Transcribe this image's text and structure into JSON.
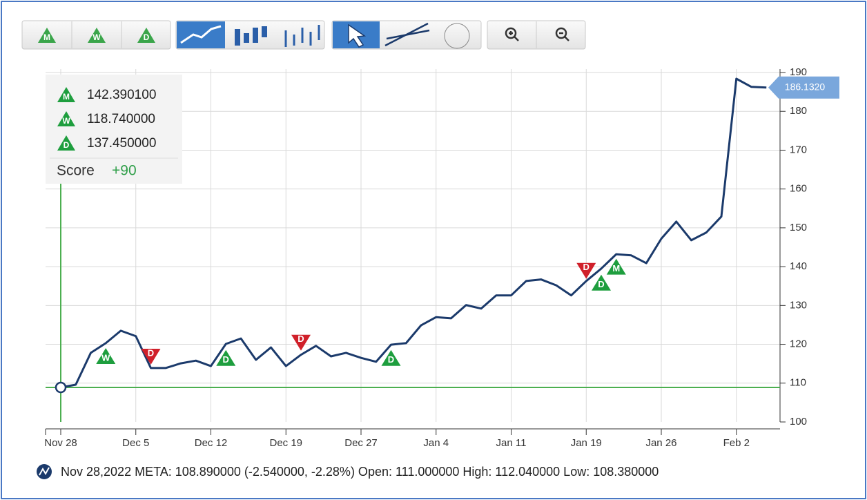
{
  "chart_data": {
    "type": "line",
    "toolbar": [
      "M",
      "W",
      "D"
    ],
    "categories": [
      "Nov 28",
      null,
      null,
      null,
      null,
      "Dec 5",
      null,
      null,
      null,
      null,
      "Dec 12",
      null,
      null,
      null,
      null,
      "Dec 19",
      null,
      null,
      null,
      null,
      "Dec 27",
      null,
      null,
      null,
      null,
      "Jan 4",
      null,
      null,
      null,
      null,
      "Jan 11",
      null,
      null,
      null,
      null,
      "Jan 19",
      null,
      null,
      null,
      null,
      "Jan 26",
      null,
      null,
      null,
      null,
      "Feb 2",
      null,
      null
    ],
    "series": [
      {
        "name": "META",
        "color": "#1b3a6b",
        "values": [
          108.89,
          109.6,
          117.8,
          120.3,
          123.5,
          122.1,
          113.9,
          113.9,
          115.1,
          115.8,
          114.4,
          120.1,
          121.5,
          116.0,
          119.2,
          114.4,
          117.3,
          119.6,
          116.9,
          117.8,
          116.5,
          115.5,
          119.9,
          120.3,
          124.9,
          127.0,
          126.7,
          130.1,
          129.2,
          132.6,
          132.6,
          136.3,
          136.7,
          135.2,
          132.6,
          136.3,
          139.5,
          143.2,
          142.9,
          140.9,
          147.2,
          151.6,
          146.8,
          148.8,
          152.9,
          188.4,
          186.3,
          186.132
        ],
        "value_labels": [
          null,
          null,
          null,
          null,
          null,
          null,
          null,
          null,
          null,
          null,
          null,
          null,
          null,
          null,
          null,
          null,
          null,
          null,
          null,
          null,
          null,
          null,
          null,
          null,
          null,
          null,
          null,
          null,
          null,
          null,
          null,
          null,
          null,
          null,
          null,
          null,
          null,
          null,
          null,
          null,
          null,
          null,
          null,
          null,
          null,
          null,
          null,
          "186.1320"
        ]
      }
    ],
    "signals": [
      {
        "index": 3,
        "y": 116.9,
        "letter": "W",
        "direction": "up",
        "color": "#1e9e3e"
      },
      {
        "index": 6,
        "y": 116.9,
        "letter": "D",
        "direction": "down",
        "color": "#d0202a"
      },
      {
        "index": 11,
        "y": 116.4,
        "letter": "D",
        "direction": "up",
        "color": "#1e9e3e"
      },
      {
        "index": 16,
        "y": 120.5,
        "letter": "D",
        "direction": "down",
        "color": "#d0202a"
      },
      {
        "index": 22,
        "y": 116.4,
        "letter": "D",
        "direction": "up",
        "color": "#1e9e3e"
      },
      {
        "index": 35,
        "y": 139.0,
        "letter": "D",
        "direction": "down",
        "color": "#d0202a"
      },
      {
        "index": 36,
        "y": 135.8,
        "letter": "D",
        "direction": "up",
        "color": "#1e9e3e"
      },
      {
        "index": 37,
        "y": 139.9,
        "letter": "M",
        "direction": "up",
        "color": "#1e9e3e"
      }
    ],
    "legend_box": [
      {
        "letter": "M",
        "value": "142.390100"
      },
      {
        "letter": "W",
        "value": "118.740000"
      },
      {
        "letter": "D",
        "value": "137.450000"
      }
    ],
    "score_label": "Score",
    "score": "+90",
    "crosshair": {
      "index": 0,
      "y": 108.89,
      "color": "#4caf50"
    },
    "status": "Nov 28,2022 META: 108.890000 (-2.540000, -2.28%) Open: 111.000000 High: 112.040000 Low: 108.380000",
    "ylim": [
      100,
      190
    ],
    "yticks": [
      100,
      110,
      120,
      130,
      140,
      150,
      160,
      170,
      180,
      190
    ],
    "grid": true
  }
}
